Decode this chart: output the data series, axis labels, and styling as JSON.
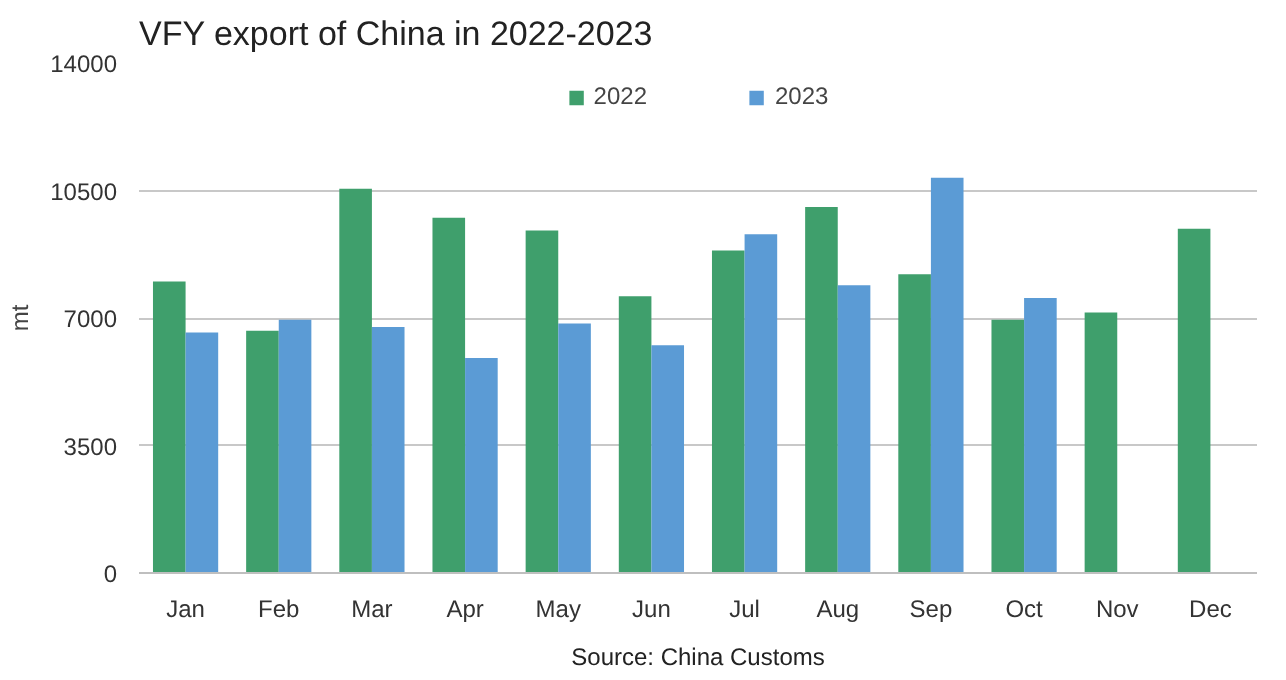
{
  "chart_data": {
    "type": "bar",
    "title": "VFY export of China in 2022-2023",
    "ylabel": "mt",
    "categories": [
      "Jan",
      "Feb",
      "Mar",
      "Apr",
      "May",
      "Jun",
      "Jul",
      "Aug",
      "Sep",
      "Oct",
      "Nov",
      "Dec"
    ],
    "series": [
      {
        "name": "2022",
        "color": "#3f9f6c",
        "values": [
          8000,
          6650,
          10550,
          9750,
          9400,
          7600,
          8850,
          10050,
          8200,
          6950,
          7150,
          9450
        ]
      },
      {
        "name": "2023",
        "color": "#5b9bd5",
        "values": [
          6600,
          6950,
          6750,
          5900,
          6850,
          6250,
          9300,
          7900,
          10850,
          7550,
          null,
          null
        ]
      }
    ],
    "ylim": [
      0,
      14000
    ],
    "yticks": [
      0,
      3500,
      7000,
      10500,
      14000
    ],
    "grid": "y",
    "legend": "top",
    "annotations": [
      "Source: China Customs"
    ]
  }
}
